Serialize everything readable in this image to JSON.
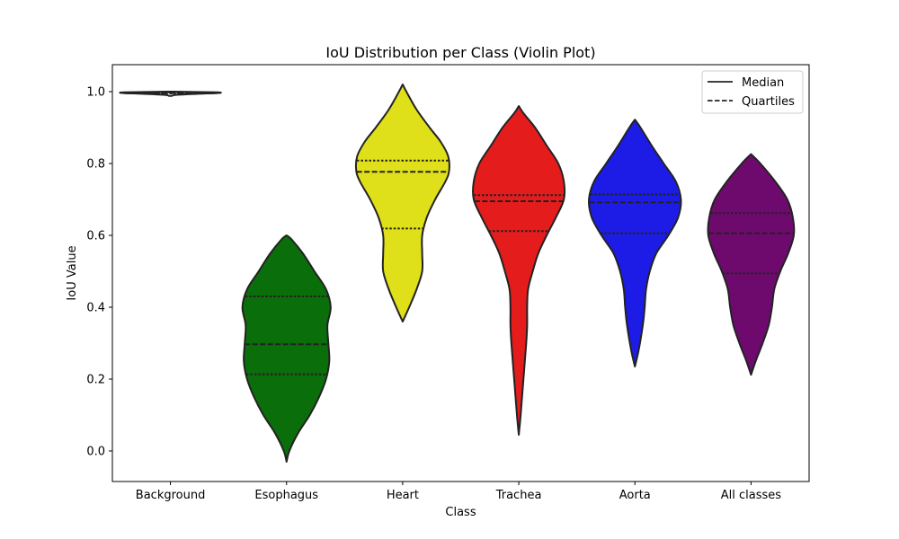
{
  "chart_data": {
    "type": "violin",
    "title": "IoU Distribution per Class (Violin Plot)",
    "xlabel": "Class",
    "ylabel": "IoU Value",
    "ylim": [
      -0.085,
      1.075
    ],
    "yticks": [
      0.0,
      0.2,
      0.4,
      0.6,
      0.8,
      1.0
    ],
    "ytick_labels": [
      "0.0",
      "0.2",
      "0.4",
      "0.6",
      "0.8",
      "1.0"
    ],
    "categories": [
      "Background",
      "Esophagus",
      "Heart",
      "Trachea",
      "Aorta",
      "All classes"
    ],
    "legend": {
      "placement": "top-right",
      "entries": [
        {
          "label": "Median",
          "style": "solid"
        },
        {
          "label": "Quartiles",
          "style": "dashed"
        }
      ]
    },
    "violins": [
      {
        "category": "Background",
        "color": "#ffffff",
        "min": 0.988,
        "max": 1.0,
        "q1": 0.995,
        "median": 0.996,
        "q3": 0.997,
        "profile": [
          [
            0.988,
            0.03
          ],
          [
            0.991,
            0.12
          ],
          [
            0.994,
            0.6
          ],
          [
            0.996,
            1.0
          ],
          [
            0.998,
            1.0
          ],
          [
            1.0,
            0.05
          ]
        ]
      },
      {
        "category": "Esophagus",
        "color": "#0a6e0a",
        "min": -0.03,
        "max": 0.6,
        "q1": 0.213,
        "median": 0.297,
        "q3": 0.43,
        "profile": [
          [
            -0.03,
            0.0
          ],
          [
            0.0,
            0.06
          ],
          [
            0.05,
            0.25
          ],
          [
            0.1,
            0.5
          ],
          [
            0.15,
            0.7
          ],
          [
            0.2,
            0.85
          ],
          [
            0.25,
            0.92
          ],
          [
            0.3,
            0.9
          ],
          [
            0.35,
            0.88
          ],
          [
            0.4,
            0.95
          ],
          [
            0.45,
            0.85
          ],
          [
            0.5,
            0.6
          ],
          [
            0.55,
            0.35
          ],
          [
            0.59,
            0.1
          ],
          [
            0.6,
            0.0
          ]
        ]
      },
      {
        "category": "Heart",
        "color": "#e0e01a",
        "min": 0.36,
        "max": 1.02,
        "q1": 0.619,
        "median": 0.777,
        "q3": 0.808,
        "profile": [
          [
            0.36,
            0.0
          ],
          [
            0.4,
            0.14
          ],
          [
            0.45,
            0.3
          ],
          [
            0.5,
            0.42
          ],
          [
            0.55,
            0.42
          ],
          [
            0.6,
            0.42
          ],
          [
            0.65,
            0.52
          ],
          [
            0.7,
            0.7
          ],
          [
            0.75,
            0.92
          ],
          [
            0.78,
            1.0
          ],
          [
            0.82,
            0.98
          ],
          [
            0.86,
            0.82
          ],
          [
            0.9,
            0.58
          ],
          [
            0.95,
            0.3
          ],
          [
            1.0,
            0.08
          ],
          [
            1.02,
            0.0
          ]
        ]
      },
      {
        "category": "Trachea",
        "color": "#e51c1c",
        "min": 0.045,
        "max": 0.96,
        "q1": 0.612,
        "median": 0.695,
        "q3": 0.712,
        "profile": [
          [
            0.045,
            0.0
          ],
          [
            0.1,
            0.04
          ],
          [
            0.2,
            0.1
          ],
          [
            0.3,
            0.16
          ],
          [
            0.35,
            0.18
          ],
          [
            0.4,
            0.18
          ],
          [
            0.45,
            0.2
          ],
          [
            0.5,
            0.3
          ],
          [
            0.55,
            0.42
          ],
          [
            0.6,
            0.6
          ],
          [
            0.65,
            0.8
          ],
          [
            0.7,
            0.97
          ],
          [
            0.75,
            0.97
          ],
          [
            0.8,
            0.85
          ],
          [
            0.85,
            0.6
          ],
          [
            0.9,
            0.35
          ],
          [
            0.94,
            0.1
          ],
          [
            0.96,
            0.0
          ]
        ]
      },
      {
        "category": "Aorta",
        "color": "#1c1ce6",
        "min": 0.235,
        "max": 0.922,
        "q1": 0.606,
        "median": 0.692,
        "q3": 0.714,
        "profile": [
          [
            0.235,
            0.0
          ],
          [
            0.28,
            0.08
          ],
          [
            0.35,
            0.17
          ],
          [
            0.4,
            0.21
          ],
          [
            0.45,
            0.24
          ],
          [
            0.5,
            0.32
          ],
          [
            0.55,
            0.46
          ],
          [
            0.6,
            0.72
          ],
          [
            0.65,
            0.93
          ],
          [
            0.7,
            0.99
          ],
          [
            0.75,
            0.88
          ],
          [
            0.8,
            0.62
          ],
          [
            0.85,
            0.36
          ],
          [
            0.9,
            0.12
          ],
          [
            0.922,
            0.0
          ]
        ]
      },
      {
        "category": "All classes",
        "color": "#6e0a6e",
        "min": 0.212,
        "max": 0.826,
        "q1": 0.494,
        "median": 0.606,
        "q3": 0.662,
        "profile": [
          [
            0.212,
            0.0
          ],
          [
            0.25,
            0.1
          ],
          [
            0.3,
            0.25
          ],
          [
            0.35,
            0.38
          ],
          [
            0.4,
            0.45
          ],
          [
            0.45,
            0.5
          ],
          [
            0.5,
            0.63
          ],
          [
            0.55,
            0.8
          ],
          [
            0.6,
            0.92
          ],
          [
            0.65,
            0.9
          ],
          [
            0.7,
            0.78
          ],
          [
            0.75,
            0.52
          ],
          [
            0.8,
            0.2
          ],
          [
            0.826,
            0.0
          ]
        ]
      }
    ]
  }
}
